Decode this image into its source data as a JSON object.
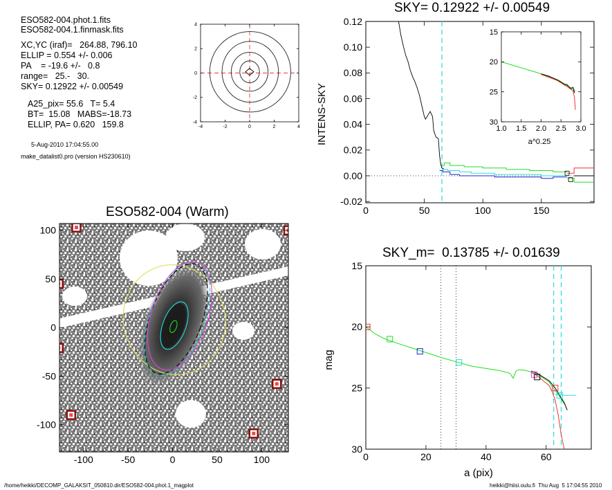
{
  "info": {
    "file1": "ESO582-004.phot.1.fits",
    "file2": "ESO582-004.1.finmask.fits",
    "xcyc": "XC,YC (iraf)=   264.88, 796.10",
    "ellip": "ELLIP = 0.554 +/- 0.006",
    "pa": "PA    = -19.6 +/-   0.8",
    "range": "range=   25.-   30.",
    "sky": "SKY= 0.12922 +/- 0.00549",
    "a25": "A25_pix= 55.6   T= 5.4",
    "bt": "BT=  15.08   MABS=-18.73",
    "ellip_pa": "ELLIP, PA= 0.620   159.8",
    "date": "5-Aug-2010 17:04:55.00",
    "program": "make_datalist0.pro (version HS230610)"
  },
  "footer": {
    "left": "/home/heikki/DECOMP_GALAKSIT_050810.dir/ESO582-004.phot.1_magplot",
    "right": "heikki@hiisi.oulu.fi  Thu Aug  5 17:04:55 2010"
  },
  "colors": {
    "green": "#22dd22",
    "red": "#ee3333",
    "blue": "#2222cc",
    "cyan": "#22dddd",
    "magenta": "#dd44dd",
    "yellow": "#dddd55",
    "darkred": "#8a1010"
  },
  "chart_data": [
    {
      "type": "line",
      "id": "contour",
      "title": "",
      "xlim": [
        -4,
        4
      ],
      "ylim": [
        -4,
        4
      ],
      "xticks": [
        -4,
        -2,
        0,
        2,
        4
      ],
      "yticks": [
        -4,
        -2,
        0,
        2,
        4
      ],
      "contours": [
        {
          "cx": 0.05,
          "cy": 0.1,
          "rx": 3.3,
          "ry": 3.3
        },
        {
          "cx": 0.05,
          "cy": 0.1,
          "rx": 2.3,
          "ry": 2.5
        },
        {
          "cx": 0.0,
          "cy": 0.1,
          "rx": 1.5,
          "ry": 1.6
        },
        {
          "cx": 0.0,
          "cy": 0.1,
          "rx": 0.8,
          "ry": 0.9
        }
      ]
    },
    {
      "type": "line",
      "id": "sky",
      "title": "SKY= 0.12922 +/- 0.00549",
      "xlabel": "",
      "ylabel": "INTENS-SKY",
      "xlim": [
        0,
        195
      ],
      "ylim": [
        -0.021,
        0.12
      ],
      "xticks": [
        0,
        50,
        100,
        150
      ],
      "yticks": [
        -0.02,
        0.0,
        0.02,
        0.04,
        0.06,
        0.08,
        0.1,
        0.12
      ],
      "ytick_labels": [
        "-0.02",
        "0.00",
        "0.02",
        "0.04",
        "0.06",
        "0.08",
        "0.10",
        "0.12"
      ],
      "cyan_vline": 65,
      "series": [
        {
          "color": "black",
          "x": [
            28,
            30,
            32,
            34,
            36,
            38,
            40,
            42,
            44,
            46,
            48,
            50,
            51,
            53,
            55,
            57,
            58,
            60,
            62,
            63,
            64,
            65,
            67
          ],
          "y": [
            0.12,
            0.109,
            0.101,
            0.094,
            0.089,
            0.082,
            0.077,
            0.073,
            0.068,
            0.062,
            0.054,
            0.046,
            0.044,
            0.047,
            0.05,
            0.046,
            0.035,
            0.03,
            0.029,
            0.016,
            0.009,
            0.006,
            0.005
          ]
        },
        {
          "color": "green",
          "x": [
            65,
            67,
            67,
            72,
            72,
            84,
            84,
            100,
            100,
            120,
            120,
            140,
            140,
            160,
            160,
            172
          ],
          "y": [
            0.008,
            0.008,
            0.01,
            0.01,
            0.008,
            0.008,
            0.007,
            0.007,
            0.006,
            0.006,
            0.005,
            0.005,
            0.004,
            0.004,
            0.003,
            0.003
          ]
        },
        {
          "color": "cyan",
          "x": [
            65,
            70,
            70,
            80,
            80,
            90,
            90,
            110,
            110,
            130,
            130,
            150,
            150,
            172
          ],
          "y": [
            0.005,
            0.005,
            0.004,
            0.004,
            0.003,
            0.003,
            0.002,
            0.002,
            0.001,
            0.001,
            0.001,
            0.001,
            0.0,
            0.0
          ]
        },
        {
          "color": "blue",
          "x": [
            63,
            66,
            66,
            72,
            72,
            80,
            80,
            95,
            95,
            110,
            110,
            130,
            130,
            150,
            150,
            160,
            160,
            172
          ],
          "y": [
            0.004,
            0.004,
            0.003,
            0.003,
            0.001,
            0.001,
            0.0,
            0.0,
            0.0,
            0.0,
            -0.001,
            -0.001,
            -0.001,
            -0.001,
            -0.002,
            -0.002,
            -0.001,
            -0.001
          ]
        },
        {
          "color": "red",
          "x": [
            172,
            178,
            178,
            195
          ],
          "y": [
            0.002,
            0.002,
            0.006,
            0.006
          ]
        },
        {
          "color": "green",
          "x": [
            172,
            178,
            178,
            195
          ],
          "y": [
            -0.002,
            -0.002,
            -0.005,
            -0.005
          ]
        },
        {
          "color": "black",
          "x": [
            178,
            195
          ],
          "y": [
            0.0,
            0.0
          ]
        }
      ],
      "squares": [
        {
          "x": 172,
          "y": 0.002
        },
        {
          "x": 175,
          "y": -0.003
        }
      ]
    },
    {
      "type": "line",
      "id": "inset",
      "title": "",
      "xlabel": "a^0.25",
      "xlim": [
        1.0,
        3.0
      ],
      "ylim": [
        30,
        15
      ],
      "xticks": [
        1.0,
        1.5,
        2.0,
        2.5,
        3.0
      ],
      "xtick_labels": [
        "1.0",
        "1.5",
        "2.0",
        "2.5",
        "3.0"
      ],
      "yticks": [
        15,
        20,
        25,
        30
      ],
      "series": [
        {
          "color": "green",
          "x": [
            1.0,
            1.3,
            1.6,
            1.9,
            2.1,
            2.3,
            2.45,
            2.55,
            2.6,
            2.65,
            2.7,
            2.75,
            2.8,
            2.85
          ],
          "y": [
            20.0,
            20.6,
            21.2,
            21.8,
            22.3,
            22.7,
            23.1,
            23.5,
            24.0,
            23.7,
            24.2,
            24.6,
            24.2,
            25.0
          ]
        },
        {
          "color": "black",
          "x": [
            2.0,
            2.2,
            2.4,
            2.55,
            2.65,
            2.75,
            2.8,
            2.84
          ],
          "y": [
            22.0,
            22.4,
            23.0,
            23.6,
            23.9,
            24.4,
            24.3,
            25.2
          ]
        },
        {
          "color": "red",
          "x": [
            2.0,
            2.2,
            2.4,
            2.55,
            2.65,
            2.75,
            2.8,
            2.84,
            2.86
          ],
          "y": [
            22.1,
            22.6,
            23.1,
            23.7,
            24.1,
            24.6,
            24.8,
            26.0,
            28.0
          ]
        }
      ]
    },
    {
      "type": "heatmap",
      "id": "image",
      "title": "ESO582-004 (Warm)",
      "xlim": [
        -127,
        130
      ],
      "ylim": [
        -128,
        107
      ],
      "xticks": [
        -100,
        -50,
        0,
        50,
        100
      ],
      "yticks": [
        -100,
        -50,
        0,
        50,
        100
      ],
      "markers": [
        {
          "x": -108,
          "y": 103
        },
        {
          "x": 130,
          "y": 100
        },
        {
          "x": -128,
          "y": 45
        },
        {
          "x": -128,
          "y": -21
        },
        {
          "x": 117,
          "y": -58
        },
        {
          "x": -114,
          "y": -90
        },
        {
          "x": 91,
          "y": -109
        }
      ],
      "ellipses": [
        {
          "color": "yellow",
          "cx": 2,
          "cy": 8,
          "rx": 57,
          "ry": 62,
          "rot": -16
        },
        {
          "color": "black",
          "cx": 4,
          "cy": 9,
          "rx": 29,
          "ry": 65,
          "rot": 20,
          "dash": true
        },
        {
          "color": "cyan",
          "cx": 5,
          "cy": 9,
          "rx": 31,
          "ry": 67,
          "rot": 20,
          "dash": true
        },
        {
          "color": "magenta",
          "cx": 8,
          "cy": 12,
          "rx": 32,
          "ry": 63,
          "rot": 18
        },
        {
          "color": "cyan",
          "cx": 2,
          "cy": 2,
          "rx": 13,
          "ry": 28,
          "rot": 20
        },
        {
          "color": "green",
          "cx": 1,
          "cy": 1,
          "rx": 3.5,
          "ry": 7,
          "rot": 20
        }
      ]
    },
    {
      "type": "line",
      "id": "mag",
      "title": "SKY_m=  0.13785 +/- 0.01639",
      "xlabel": "a (pix)",
      "ylabel": "mag",
      "xlim": [
        0,
        75
      ],
      "ylim": [
        30,
        15
      ],
      "xticks": [
        0,
        20,
        40,
        60
      ],
      "yticks": [
        15,
        20,
        25,
        30
      ],
      "dotted_vlines": [
        25,
        30
      ],
      "cyan_vlines": [
        62.5,
        65
      ],
      "series": [
        {
          "color": "green",
          "x": [
            0,
            3,
            6,
            10,
            15,
            20,
            25,
            30,
            35,
            40,
            45,
            48,
            49,
            50,
            51,
            53,
            55,
            57,
            59,
            61,
            62,
            63,
            64,
            65,
            66
          ],
          "y": [
            20.0,
            20.55,
            20.95,
            21.3,
            21.7,
            22.1,
            22.5,
            22.85,
            23.2,
            23.4,
            23.6,
            23.8,
            24.2,
            23.6,
            23.5,
            23.55,
            23.7,
            23.9,
            24.2,
            24.5,
            24.9,
            25.2,
            25.5,
            25.9,
            26.3
          ]
        },
        {
          "color": "black",
          "x": [
            55,
            57,
            59,
            61,
            62,
            63,
            64,
            65,
            66,
            67
          ],
          "y": [
            23.6,
            23.8,
            24.1,
            24.4,
            24.7,
            25.0,
            25.4,
            25.8,
            26.2,
            26.8
          ]
        },
        {
          "color": "red",
          "x": [
            55,
            57,
            59,
            61,
            62,
            63,
            64,
            65,
            66
          ],
          "y": [
            23.7,
            24.0,
            24.4,
            24.8,
            25.3,
            26.0,
            27.2,
            28.8,
            30
          ]
        },
        {
          "color": "cyan",
          "x": [
            63,
            66,
            70
          ],
          "y": [
            25.5,
            25.6,
            25.6
          ]
        }
      ],
      "squares": [
        {
          "x": 0.5,
          "y": 20.0,
          "color": "red"
        },
        {
          "x": 8,
          "y": 21.0,
          "color": "green"
        },
        {
          "x": 18,
          "y": 22.0,
          "color": "blue"
        },
        {
          "x": 31,
          "y": 22.9,
          "color": "cyan"
        },
        {
          "x": 56,
          "y": 23.9,
          "color": "magenta"
        },
        {
          "x": 57,
          "y": 24.1,
          "color": "black"
        },
        {
          "x": 63,
          "y": 25.0,
          "color": "red"
        },
        {
          "x": 64.5,
          "y": 25.6,
          "color": "cyan"
        }
      ]
    }
  ]
}
